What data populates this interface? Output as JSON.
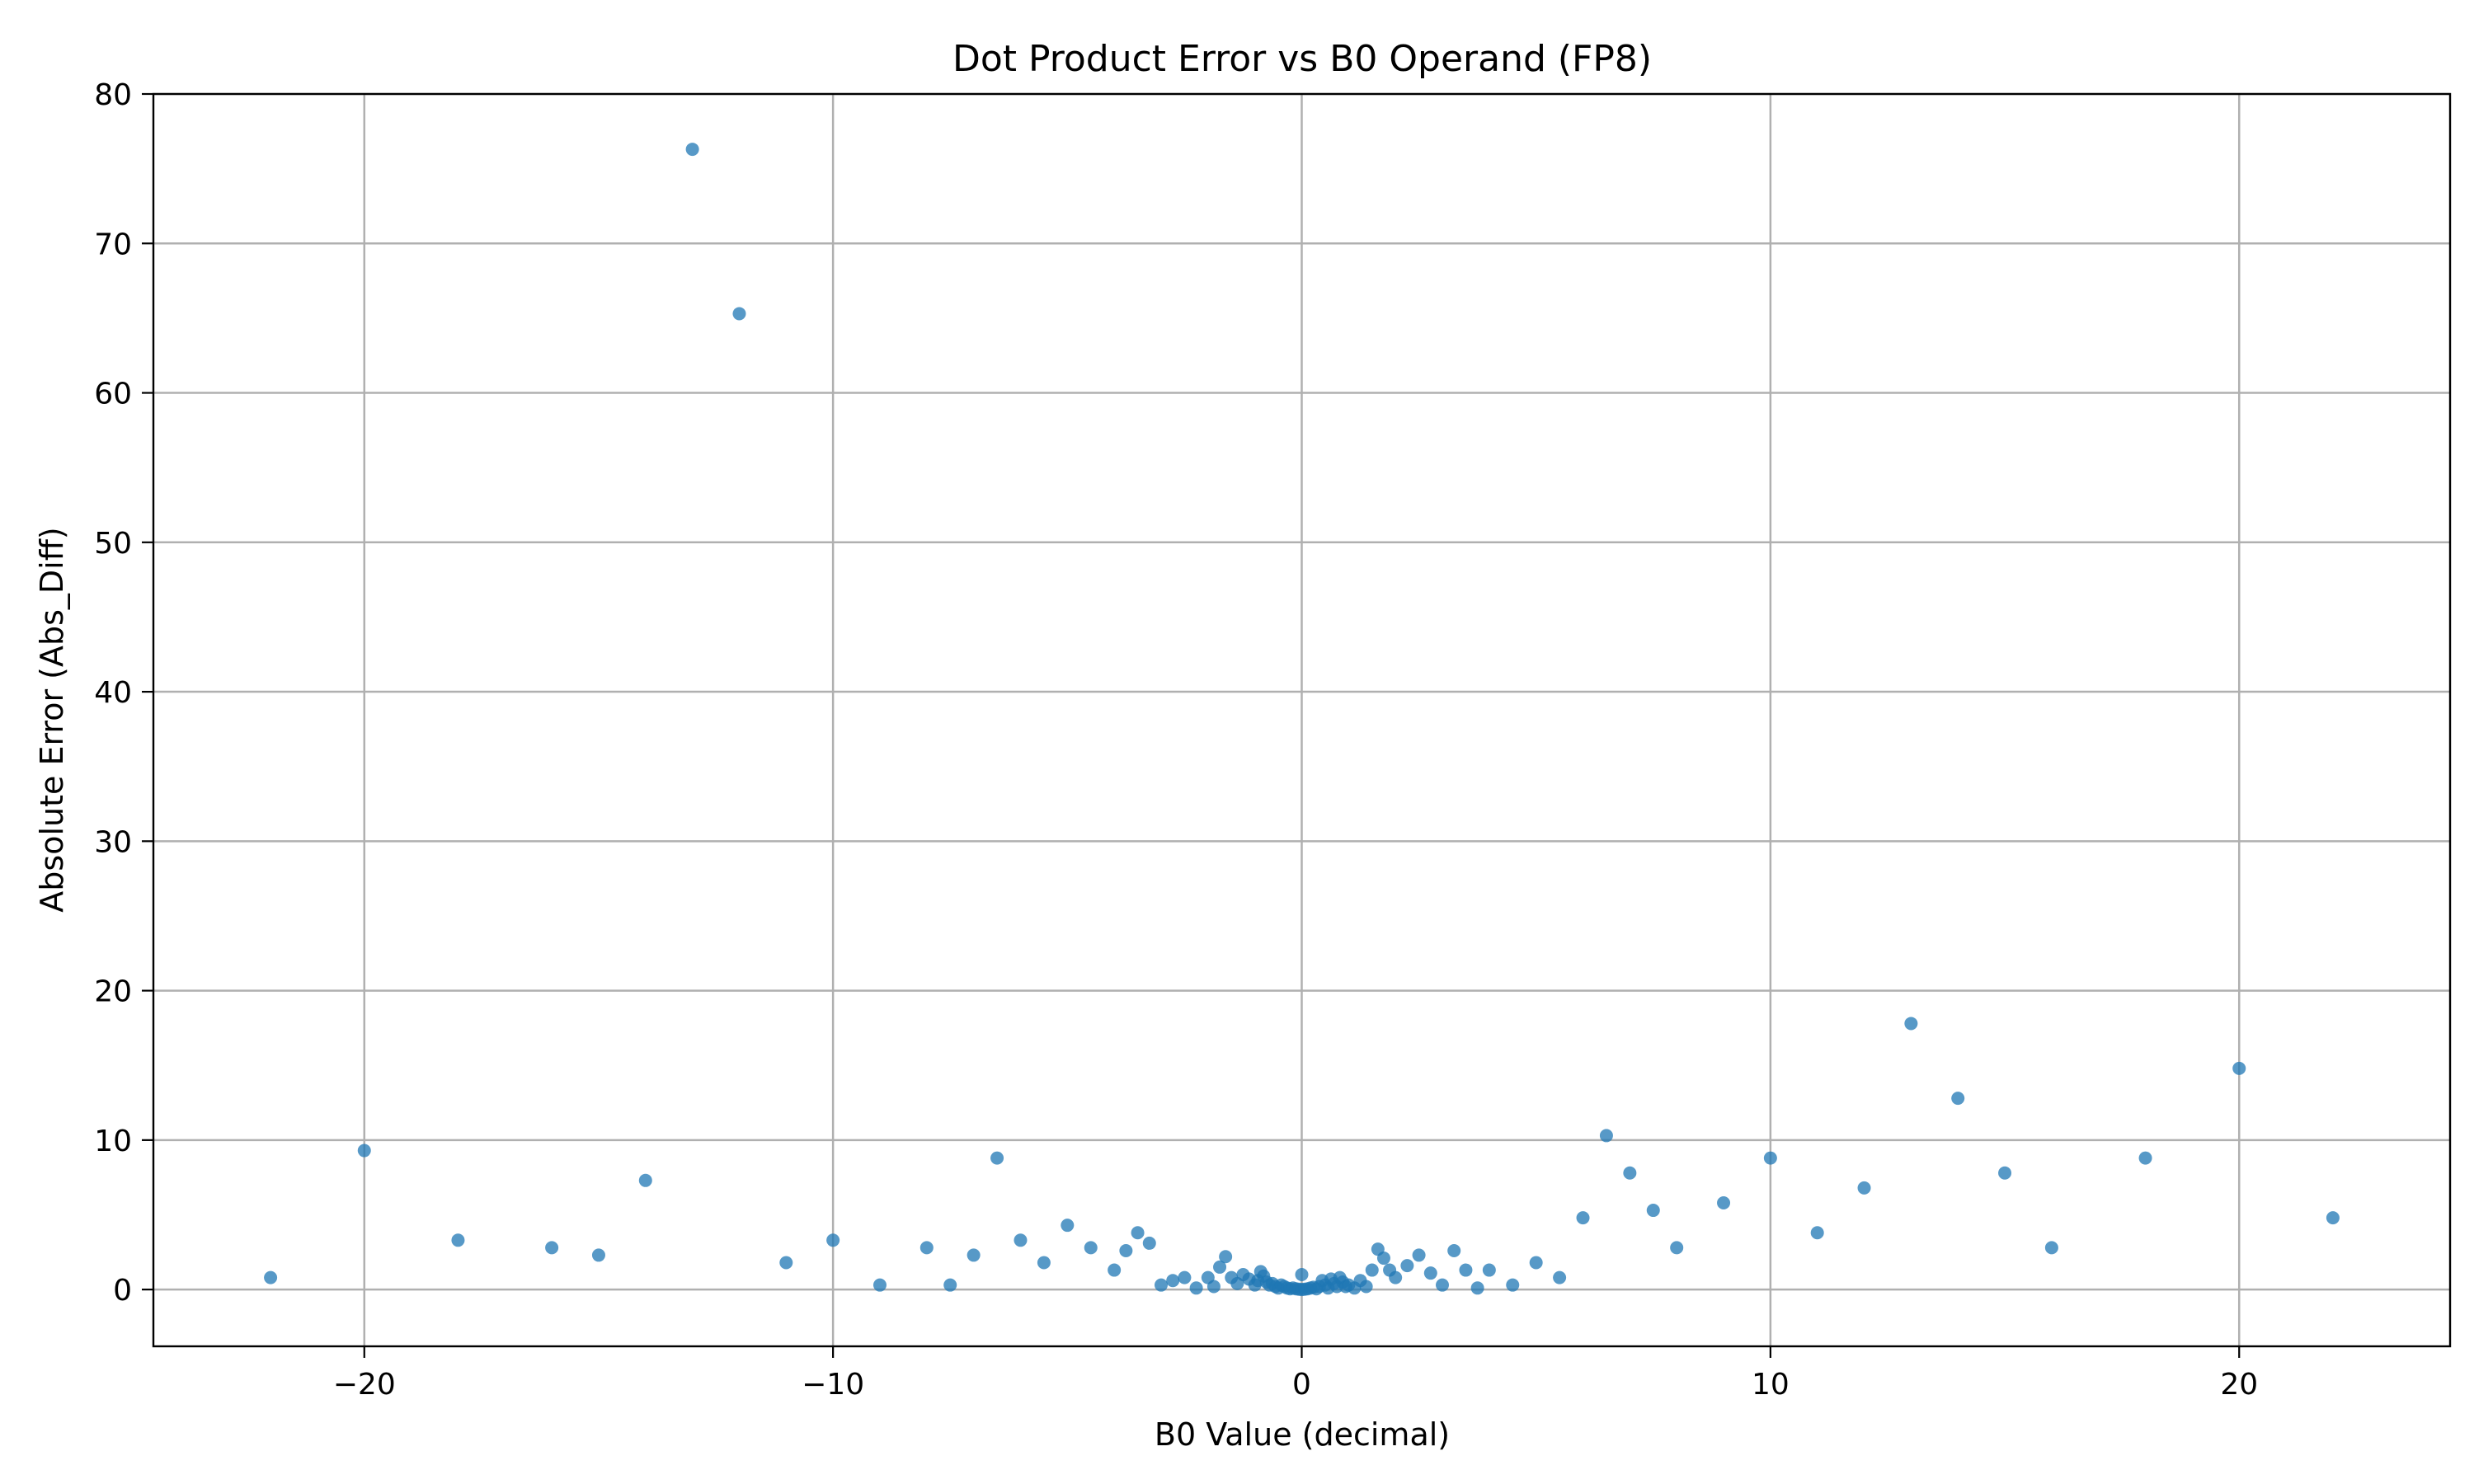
{
  "chart_data": {
    "type": "scatter",
    "title": "Dot Product Error vs B0 Operand (FP8)",
    "xlabel": "B0 Value (decimal)",
    "ylabel": "Absolute Error (Abs_Diff)",
    "xlim": [
      -24.5,
      24.5
    ],
    "ylim": [
      -3.8,
      80
    ],
    "xticks": [
      -20,
      -10,
      0,
      10,
      20
    ],
    "xtick_labels": [
      "−20",
      "−10",
      "0",
      "10",
      "20"
    ],
    "yticks": [
      0,
      10,
      20,
      30,
      40,
      50,
      60,
      70,
      80
    ],
    "ytick_labels": [
      "0",
      "10",
      "20",
      "30",
      "40",
      "50",
      "60",
      "70",
      "80"
    ],
    "grid": true,
    "marker_color": "#1f77b4",
    "points": [
      {
        "x": -22,
        "y": 0.8
      },
      {
        "x": -20,
        "y": 9.3
      },
      {
        "x": -18,
        "y": 3.3
      },
      {
        "x": -16,
        "y": 2.8
      },
      {
        "x": -15,
        "y": 2.3
      },
      {
        "x": -14,
        "y": 7.3
      },
      {
        "x": -13,
        "y": 76.3
      },
      {
        "x": -12,
        "y": 65.3
      },
      {
        "x": -11,
        "y": 1.8
      },
      {
        "x": -10,
        "y": 3.3
      },
      {
        "x": -9,
        "y": 0.3
      },
      {
        "x": -8,
        "y": 2.8
      },
      {
        "x": -7.5,
        "y": 0.3
      },
      {
        "x": -7,
        "y": 2.3
      },
      {
        "x": -6.5,
        "y": 8.8
      },
      {
        "x": -6,
        "y": 3.3
      },
      {
        "x": -5.5,
        "y": 1.8
      },
      {
        "x": -5,
        "y": 4.3
      },
      {
        "x": -4.5,
        "y": 2.8
      },
      {
        "x": -4,
        "y": 1.3
      },
      {
        "x": -3.75,
        "y": 2.6
      },
      {
        "x": -3.5,
        "y": 3.8
      },
      {
        "x": -3.25,
        "y": 3.1
      },
      {
        "x": -3,
        "y": 0.3
      },
      {
        "x": -2.75,
        "y": 0.6
      },
      {
        "x": -2.5,
        "y": 0.8
      },
      {
        "x": -2.25,
        "y": 0.1
      },
      {
        "x": -2,
        "y": 0.8
      },
      {
        "x": -1.875,
        "y": 0.2
      },
      {
        "x": -1.75,
        "y": 1.5
      },
      {
        "x": -1.625,
        "y": 2.2
      },
      {
        "x": -1.5,
        "y": 0.8
      },
      {
        "x": -1.375,
        "y": 0.4
      },
      {
        "x": -1.25,
        "y": 1.0
      },
      {
        "x": -1.125,
        "y": 0.7
      },
      {
        "x": -1.0,
        "y": 0.3
      },
      {
        "x": -0.9375,
        "y": 0.6
      },
      {
        "x": -0.875,
        "y": 1.2
      },
      {
        "x": -0.8125,
        "y": 0.9
      },
      {
        "x": -0.75,
        "y": 0.5
      },
      {
        "x": -0.6875,
        "y": 0.3
      },
      {
        "x": -0.625,
        "y": 0.4
      },
      {
        "x": -0.5625,
        "y": 0.2
      },
      {
        "x": -0.5,
        "y": 0.1
      },
      {
        "x": -0.4375,
        "y": 0.3
      },
      {
        "x": -0.375,
        "y": 0.2
      },
      {
        "x": -0.3125,
        "y": 0.1
      },
      {
        "x": -0.25,
        "y": 0.05
      },
      {
        "x": -0.1875,
        "y": 0.1
      },
      {
        "x": -0.125,
        "y": 0.05
      },
      {
        "x": -0.0625,
        "y": 0.02
      },
      {
        "x": 0,
        "y": 1.0
      },
      {
        "x": 0,
        "y": 0.0
      },
      {
        "x": 0.0625,
        "y": 0.02
      },
      {
        "x": 0.125,
        "y": 0.05
      },
      {
        "x": 0.1875,
        "y": 0.1
      },
      {
        "x": 0.25,
        "y": 0.15
      },
      {
        "x": 0.3125,
        "y": 0.05
      },
      {
        "x": 0.375,
        "y": 0.2
      },
      {
        "x": 0.4375,
        "y": 0.6
      },
      {
        "x": 0.5,
        "y": 0.3
      },
      {
        "x": 0.5625,
        "y": 0.1
      },
      {
        "x": 0.625,
        "y": 0.7
      },
      {
        "x": 0.6875,
        "y": 0.4
      },
      {
        "x": 0.75,
        "y": 0.2
      },
      {
        "x": 0.8125,
        "y": 0.8
      },
      {
        "x": 0.875,
        "y": 0.5
      },
      {
        "x": 0.9375,
        "y": 0.2
      },
      {
        "x": 1.0,
        "y": 0.3
      },
      {
        "x": 1.125,
        "y": 0.1
      },
      {
        "x": 1.25,
        "y": 0.6
      },
      {
        "x": 1.375,
        "y": 0.2
      },
      {
        "x": 1.5,
        "y": 1.3
      },
      {
        "x": 1.625,
        "y": 2.7
      },
      {
        "x": 1.75,
        "y": 2.1
      },
      {
        "x": 1.875,
        "y": 1.3
      },
      {
        "x": 2,
        "y": 0.8
      },
      {
        "x": 2.25,
        "y": 1.6
      },
      {
        "x": 2.5,
        "y": 2.3
      },
      {
        "x": 2.75,
        "y": 1.1
      },
      {
        "x": 3,
        "y": 0.3
      },
      {
        "x": 3.25,
        "y": 2.6
      },
      {
        "x": 3.5,
        "y": 1.3
      },
      {
        "x": 3.75,
        "y": 0.1
      },
      {
        "x": 4,
        "y": 1.3
      },
      {
        "x": 4.5,
        "y": 0.3
      },
      {
        "x": 5,
        "y": 1.8
      },
      {
        "x": 5.5,
        "y": 0.8
      },
      {
        "x": 6,
        "y": 4.8
      },
      {
        "x": 6.5,
        "y": 10.3
      },
      {
        "x": 7,
        "y": 7.8
      },
      {
        "x": 7.5,
        "y": 5.3
      },
      {
        "x": 8,
        "y": 2.8
      },
      {
        "x": 9,
        "y": 5.8
      },
      {
        "x": 10,
        "y": 8.8
      },
      {
        "x": 11,
        "y": 3.8
      },
      {
        "x": 12,
        "y": 6.8
      },
      {
        "x": 13,
        "y": 17.8
      },
      {
        "x": 14,
        "y": 12.8
      },
      {
        "x": 15,
        "y": 7.8
      },
      {
        "x": 16,
        "y": 2.8
      },
      {
        "x": 18,
        "y": 8.8
      },
      {
        "x": 20,
        "y": 14.8
      },
      {
        "x": 22,
        "y": 4.8
      }
    ]
  }
}
